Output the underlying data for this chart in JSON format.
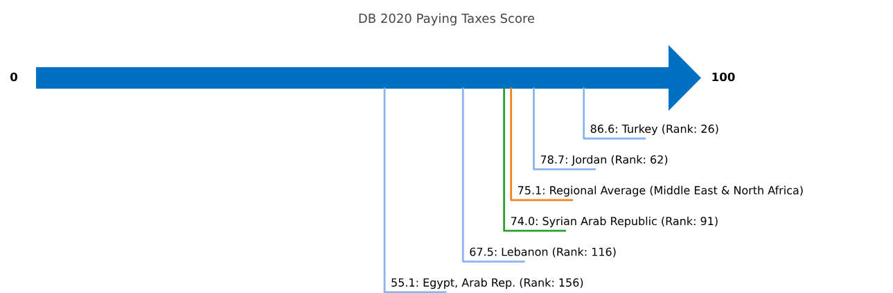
{
  "chart_data": {
    "type": "other",
    "title": "DB 2020 Paying Taxes Score",
    "color": "#0070c0",
    "annotations": [
      "0",
      "100"
    ],
    "categories": [
      "Turkey (Rank: 26)",
      "Jordan (Rank: 62)",
      "Regional Average (Middle East & North Africa)",
      "Syrian Arab Republic (Rank: 91)",
      "Lebanon (Rank: 116)",
      "Egypt, Arab Rep. (Rank: 156)"
    ],
    "values": [
      86.6,
      78.7,
      75.1,
      74.0,
      67.5,
      55.1
    ],
    "value_labels": [
      "86.6:",
      "78.7:",
      "75.1:",
      "74.0:",
      "67.5:",
      "55.1:"
    ],
    "colors": [
      "#8ab4f0",
      "#8ab4f0",
      "#f5821f",
      "#2ca02c",
      "#8ab4f0",
      "#8ab4f0"
    ]
  }
}
